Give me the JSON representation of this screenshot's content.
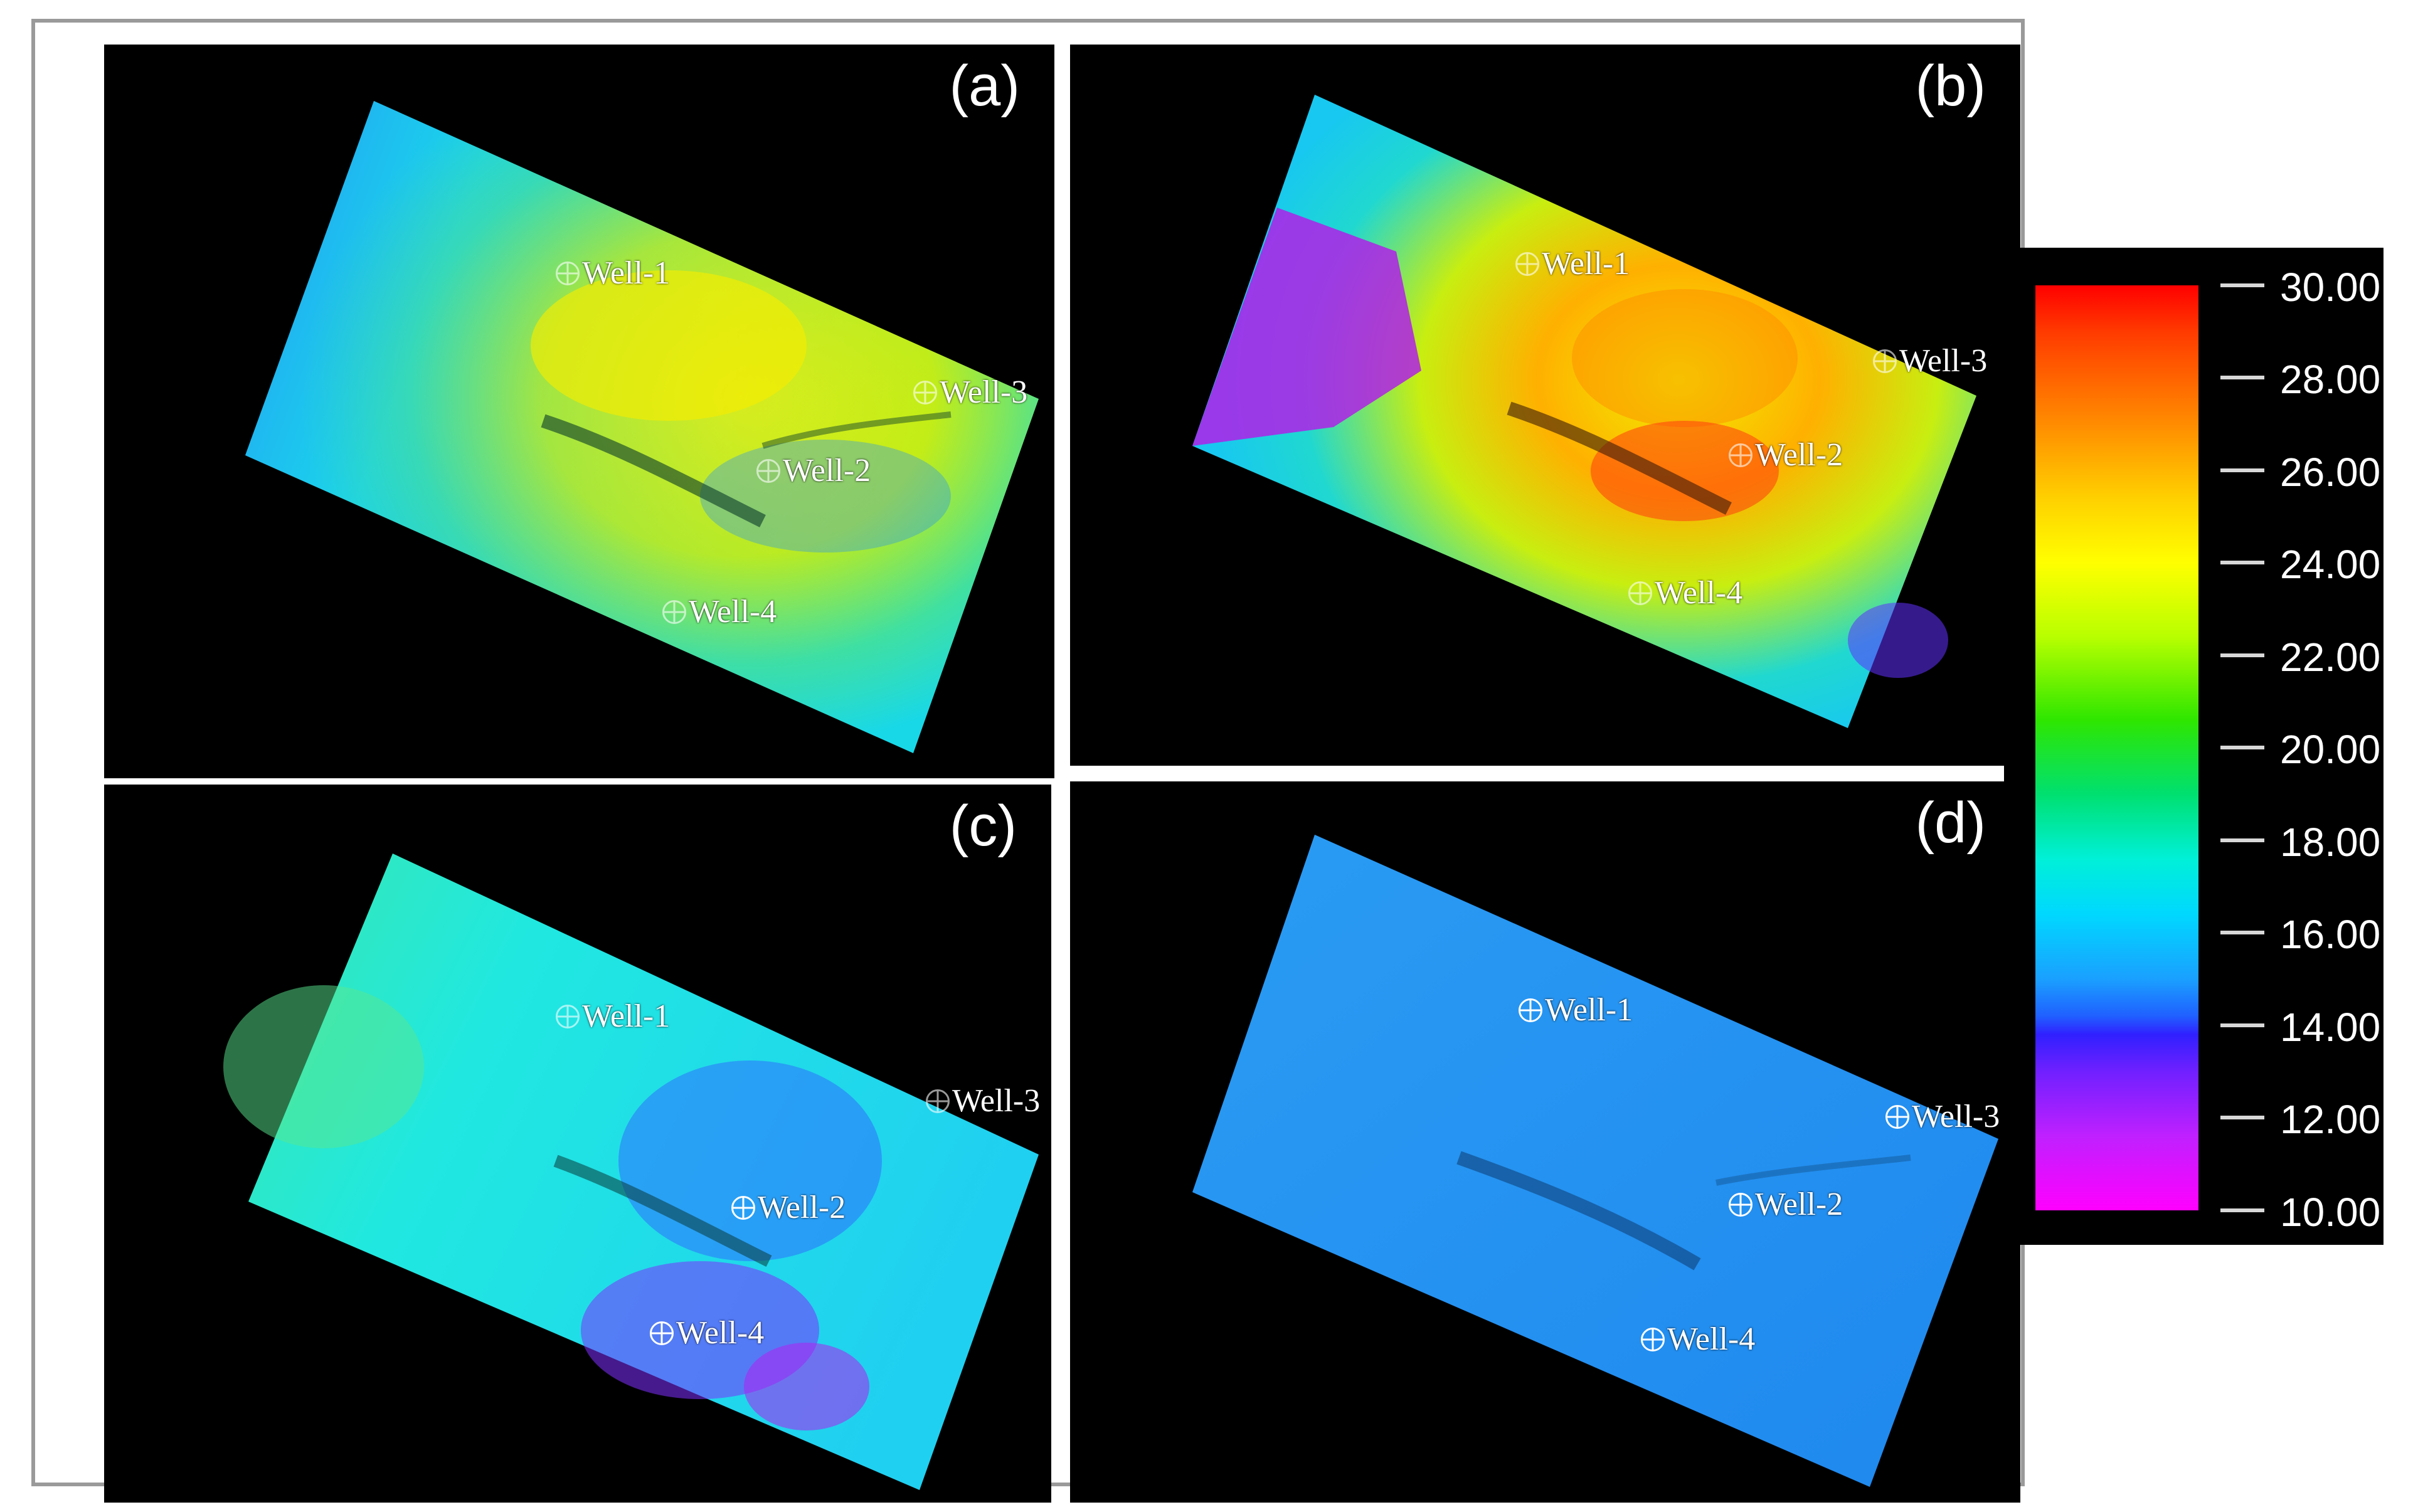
{
  "panels": {
    "a": {
      "label": "(a)",
      "wells": [
        "Well-1",
        "Well-2",
        "Well-3",
        "Well-4"
      ]
    },
    "b": {
      "label": "(b)",
      "wells": [
        "Well-1",
        "Well-2",
        "Well-3",
        "Well-4"
      ]
    },
    "c": {
      "label": "(c)",
      "wells": [
        "Well-1",
        "Well-2",
        "Well-3",
        "Well-4"
      ]
    },
    "d": {
      "label": "(d)",
      "wells": [
        "Well-1",
        "Well-2",
        "Well-3",
        "Well-4"
      ]
    }
  },
  "colorbar": {
    "ticks": [
      "30.00",
      "28.00",
      "26.00",
      "24.00",
      "22.00",
      "20.00",
      "18.00",
      "16.00",
      "14.00",
      "12.00",
      "10.00"
    ],
    "max": 30,
    "min": 10,
    "colors": [
      "#ff0000",
      "#ff8c00",
      "#ffff00",
      "#2ee600",
      "#00f0d8",
      "#1aa0ff",
      "#3020ff",
      "#ff00ff"
    ]
  }
}
